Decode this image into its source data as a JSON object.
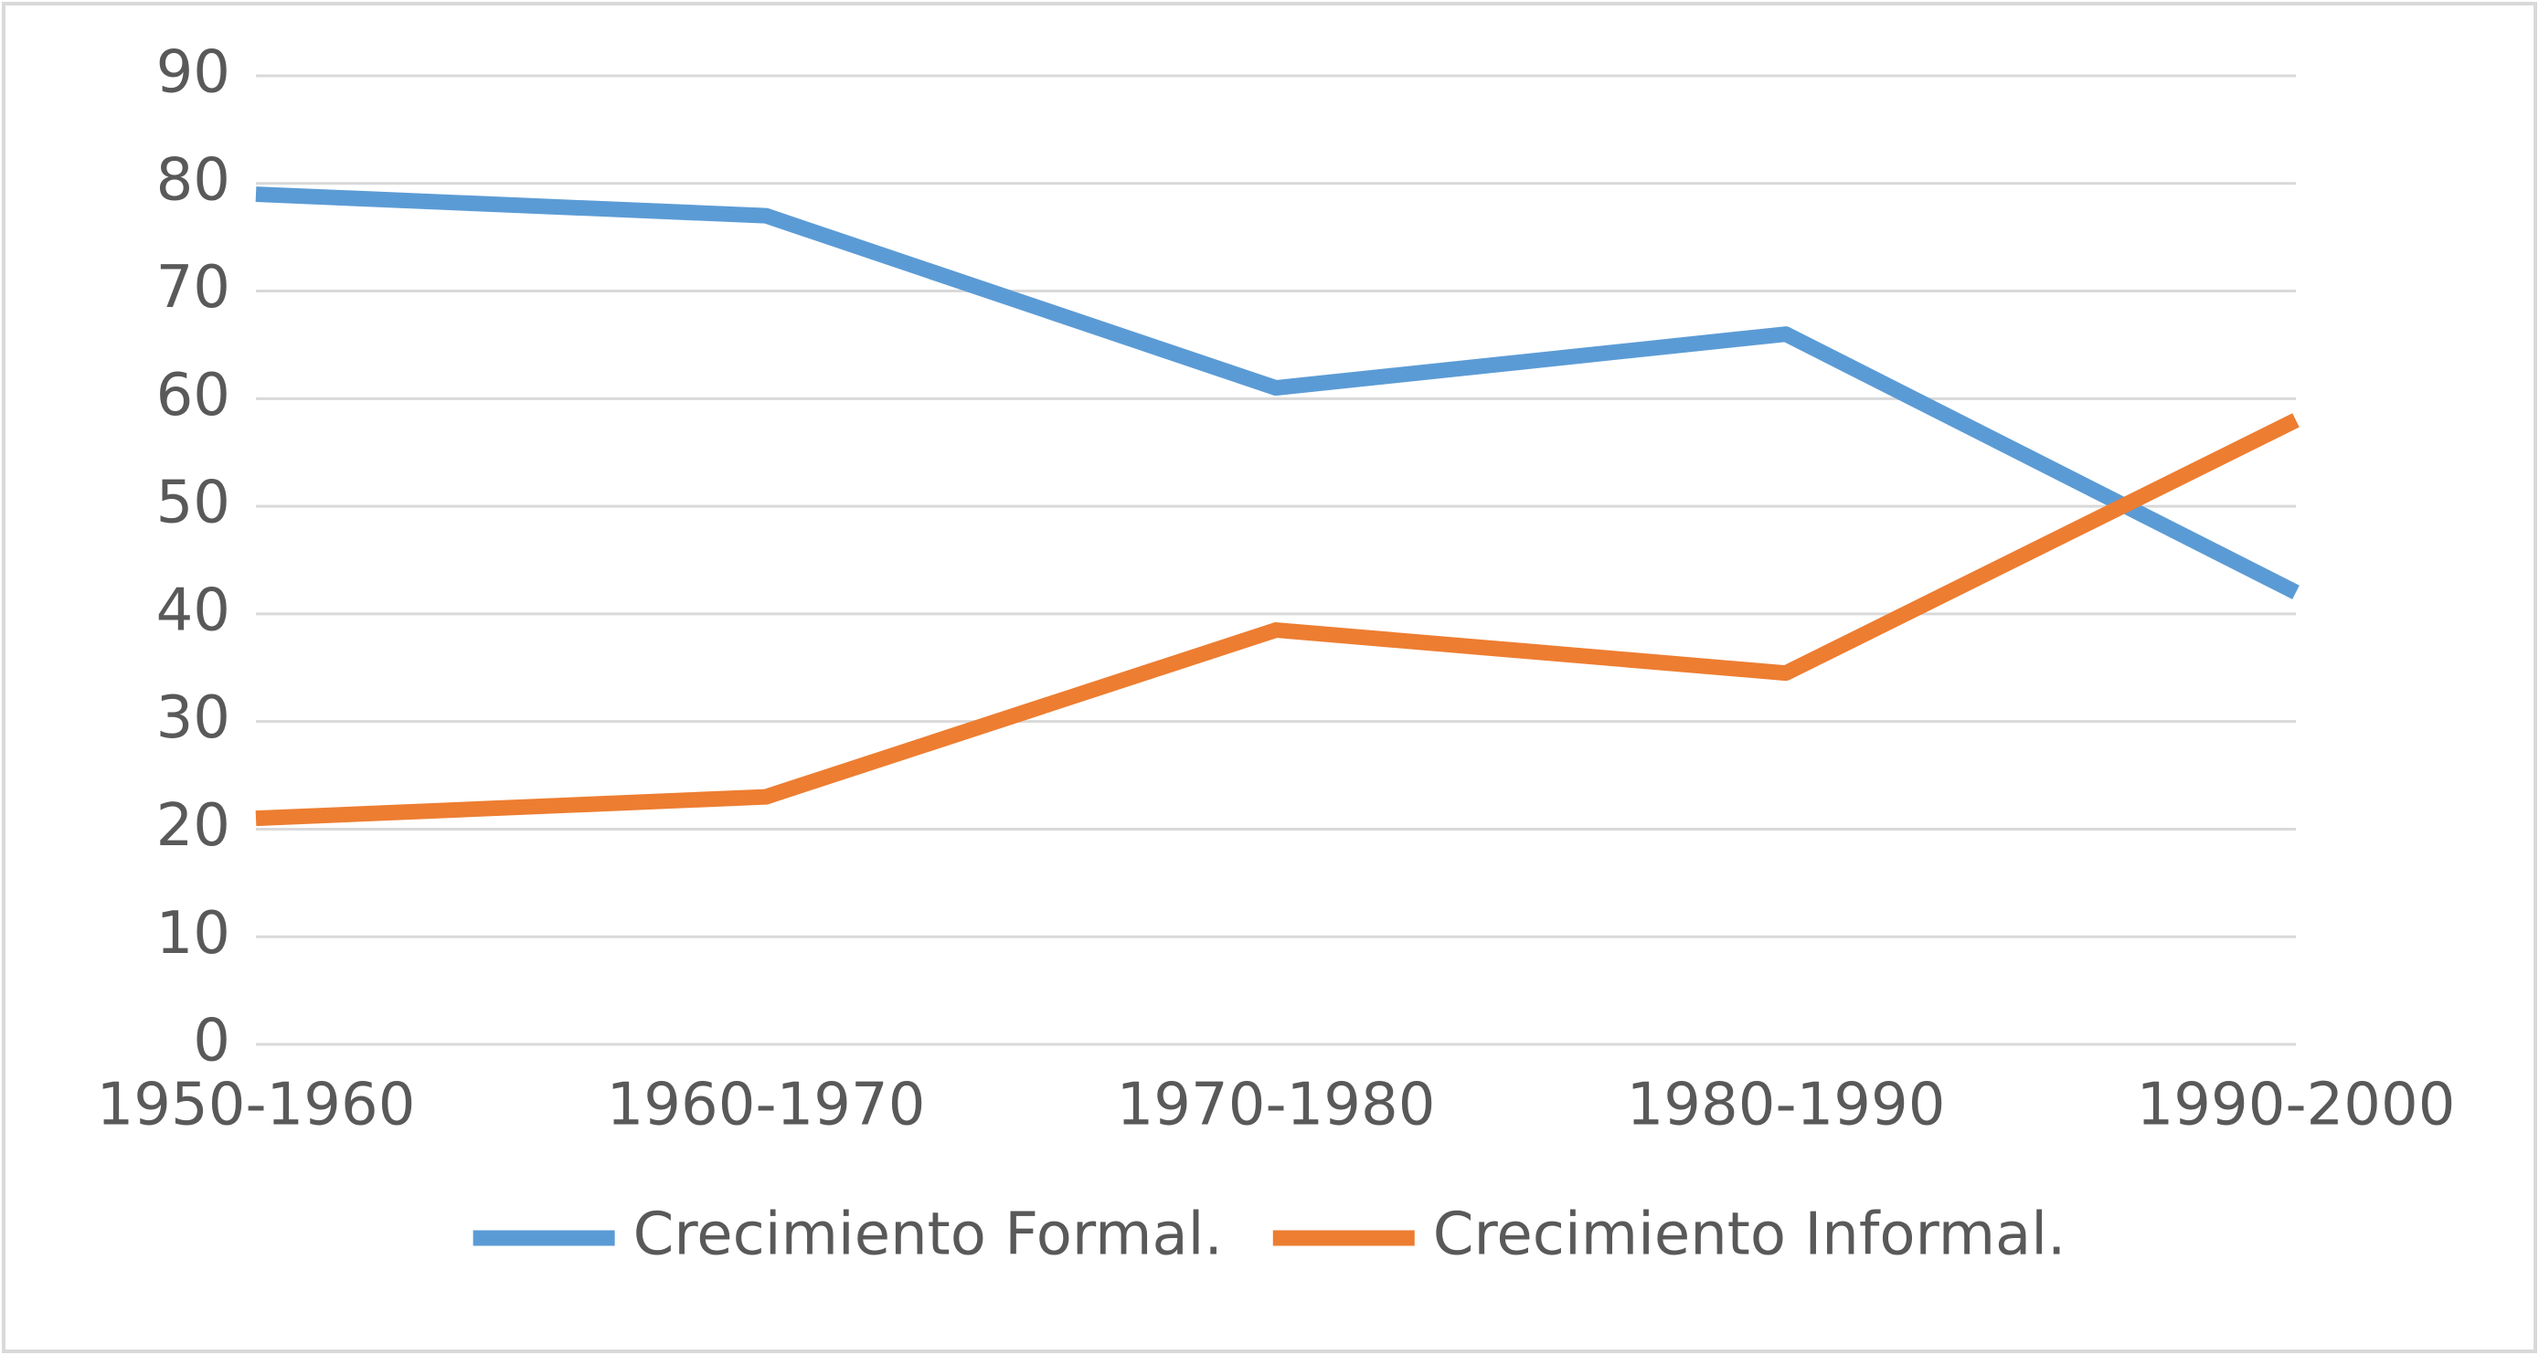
{
  "chart_data": {
    "type": "line",
    "categories": [
      "1950-1960",
      "1960-1970",
      "1970-1980",
      "1980-1990",
      "1990-2000"
    ],
    "series": [
      {
        "name": "Crecimiento Formal.",
        "color": "#5b9bd5",
        "values": [
          79,
          77,
          61,
          66,
          42
        ]
      },
      {
        "name": "Crecimiento Informal.",
        "color": "#ed7d31",
        "values": [
          21,
          23,
          38.5,
          34.5,
          58
        ]
      }
    ],
    "ylim": [
      0,
      90
    ],
    "yticks": [
      0,
      10,
      20,
      30,
      40,
      50,
      60,
      70,
      80,
      90
    ],
    "grid": true,
    "legend": "bottom"
  }
}
